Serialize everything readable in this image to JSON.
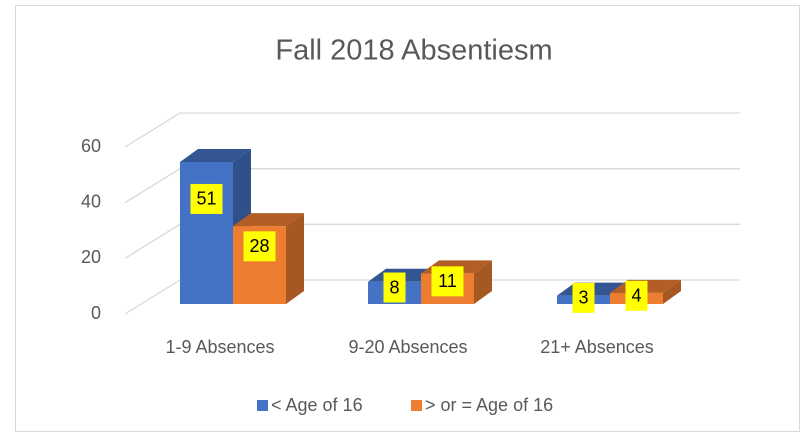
{
  "chart_data": {
    "type": "bar",
    "title": "Fall 2018 Absentiesm",
    "categories": [
      "1-9 Absences",
      "9-20 Absences",
      "21+ Absences"
    ],
    "series": [
      {
        "name": "< Age of 16",
        "color": "#4472c4",
        "values": [
          51,
          8,
          3
        ]
      },
      {
        "name": "> or = Age of 16",
        "color": "#ed7d31",
        "values": [
          28,
          11,
          4
        ]
      }
    ],
    "ylim": [
      0,
      60
    ],
    "yticks": [
      0,
      20,
      40,
      60
    ],
    "grid": true,
    "legend": "bottom"
  }
}
